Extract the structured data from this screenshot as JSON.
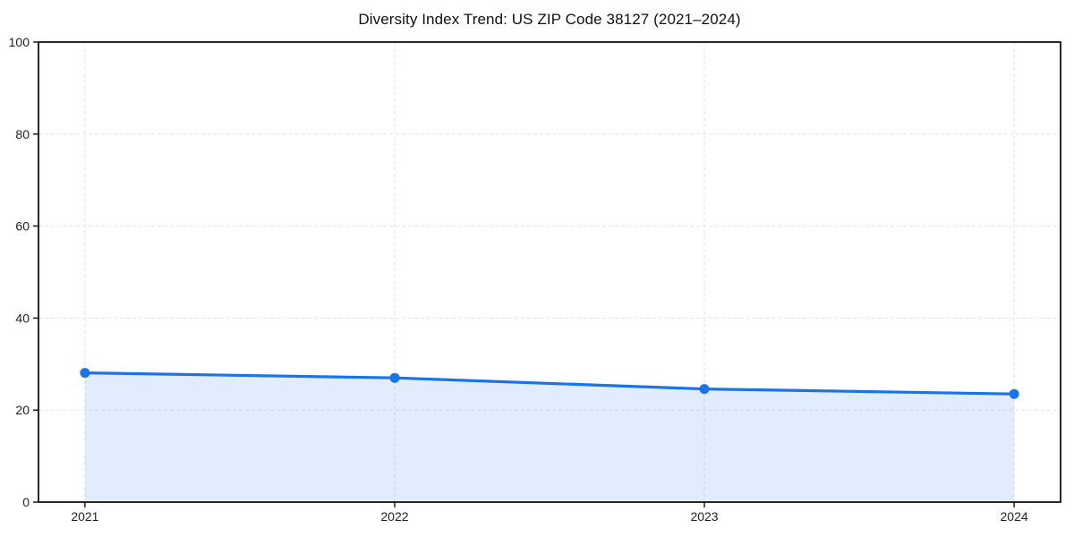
{
  "chart_data": {
    "type": "area",
    "title": "Diversity Index Trend: US ZIP Code 38127 (2021–2024)",
    "categories": [
      "2021",
      "2022",
      "2023",
      "2024"
    ],
    "series": [
      {
        "name": "Diversity Index",
        "values": [
          28.1,
          27.0,
          24.6,
          23.5
        ]
      }
    ],
    "xlabel": "",
    "ylabel": "",
    "ylim": [
      0,
      100
    ],
    "yticks": [
      0,
      20,
      40,
      60,
      80,
      100
    ],
    "grid": true,
    "grid_style": "dashed",
    "legend_position": "none",
    "line_color": "#1a73e8",
    "fill_color": "rgba(26,115,232,0.13)",
    "grid_color": "#e3e3e3",
    "axis_color": "#111111",
    "tick_label_color": "#1f1f1f",
    "marker": "circle"
  }
}
